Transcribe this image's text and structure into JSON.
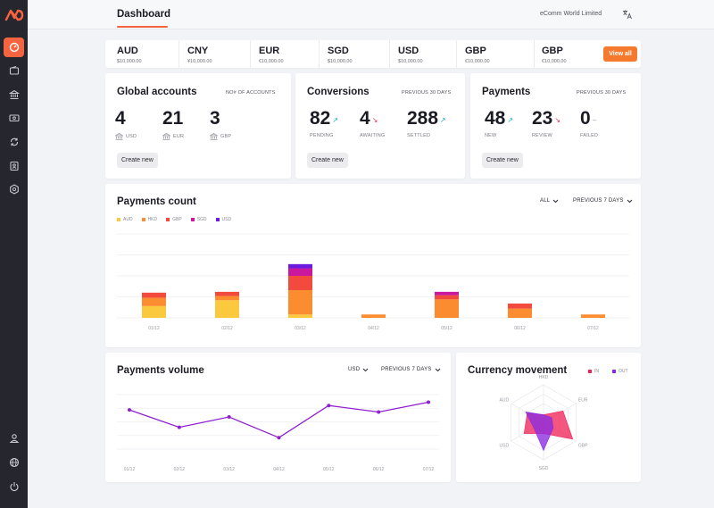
{
  "header": {
    "active_tab": "Dashboard",
    "company": "eComm World Limited"
  },
  "currencies": [
    {
      "code": "AUD",
      "amount": "$10,000.00"
    },
    {
      "code": "CNY",
      "amount": "¥10,000.00"
    },
    {
      "code": "EUR",
      "amount": "€10,000.00"
    },
    {
      "code": "SGD",
      "amount": "$10,000.00"
    },
    {
      "code": "USD",
      "amount": "$10,000.00"
    },
    {
      "code": "GBP",
      "amount": "€10,000.00"
    },
    {
      "code": "GBP",
      "amount": "€10,000.00"
    }
  ],
  "view_all_label": "View all",
  "global_accounts": {
    "title": "Global accounts",
    "meta": "NO# OF ACCOUNTS",
    "button": "Create new",
    "stats": [
      {
        "value": "4",
        "label": "USD"
      },
      {
        "value": "21",
        "label": "EUR"
      },
      {
        "value": "3",
        "label": "GBP"
      }
    ]
  },
  "conversions": {
    "title": "Conversions",
    "meta": "PREVIOUS 30 DAYS",
    "button": "Create new",
    "stats": [
      {
        "value": "82",
        "label": "PENDING",
        "arrow": "↗"
      },
      {
        "value": "4",
        "label": "AWAITING",
        "arrow": "↘"
      },
      {
        "value": "288",
        "label": "SETTLED",
        "arrow": "↗"
      }
    ]
  },
  "payments": {
    "title": "Payments",
    "meta": "PREVIOUS 30 DAYS",
    "button": "Create new",
    "stats": [
      {
        "value": "48",
        "label": "NEW",
        "arrow": "↗"
      },
      {
        "value": "23",
        "label": "REVIEW",
        "arrow": "↘"
      },
      {
        "value": "0",
        "label": "FAILED",
        "arrow": "–"
      }
    ]
  },
  "colors": {
    "accent": "#f5633f",
    "up": "#19b3bf",
    "down": "#e8384f",
    "neutral": "#9a9ba3",
    "line": "#8f1fd0"
  },
  "payments_count": {
    "title": "Payments count",
    "filter_all": "ALL",
    "filter_period": "PREVIOUS 7 DAYS",
    "chart_data": {
      "type": "bar",
      "stacked": true,
      "categories": [
        "01/12",
        "02/12",
        "03/12",
        "04/12",
        "05/12",
        "06/12",
        "07/12"
      ],
      "ylim": [
        0,
        100
      ],
      "series": [
        {
          "name": "AUD",
          "color": "#fbc93d",
          "values": [
            14,
            21,
            4,
            0,
            0,
            0,
            0
          ]
        },
        {
          "name": "HKD",
          "color": "#fb8c2f",
          "values": [
            10,
            5,
            29,
            4,
            22,
            11,
            4
          ]
        },
        {
          "name": "GBP",
          "color": "#f24b3d",
          "values": [
            6,
            5,
            17,
            0,
            5,
            6,
            0
          ]
        },
        {
          "name": "SGD",
          "color": "#c9179e",
          "values": [
            0,
            0,
            9,
            0,
            4,
            0,
            0
          ]
        },
        {
          "name": "USD",
          "color": "#6b1ce0",
          "values": [
            0,
            0,
            5,
            0,
            0,
            0,
            0
          ]
        }
      ]
    }
  },
  "payments_volume": {
    "title": "Payments volume",
    "filter_currency": "USD",
    "filter_period": "PREVIOUS 7 DAYS",
    "chart_data": {
      "type": "line",
      "x": [
        "01/12",
        "02/12",
        "03/12",
        "04/12",
        "05/12",
        "06/12",
        "07/12"
      ],
      "series": [
        {
          "name": "Volume",
          "values": [
            72,
            40,
            59,
            21,
            80,
            68,
            86
          ]
        }
      ],
      "ylim": [
        0,
        100
      ]
    }
  },
  "currency_movement": {
    "title": "Currency movement",
    "legend_in": "IN",
    "legend_out": "OUT",
    "chart_data": {
      "type": "radar",
      "axes": [
        "HKD",
        "EUR",
        "GBP",
        "SGD",
        "USD",
        "AUD"
      ],
      "rmax": 100,
      "series": [
        {
          "name": "IN",
          "color": "#f0265b",
          "values": [
            20,
            60,
            90,
            30,
            60,
            50
          ]
        },
        {
          "name": "OUT",
          "color": "#8b2be0",
          "values": [
            20,
            25,
            30,
            75,
            30,
            55
          ]
        }
      ]
    }
  }
}
